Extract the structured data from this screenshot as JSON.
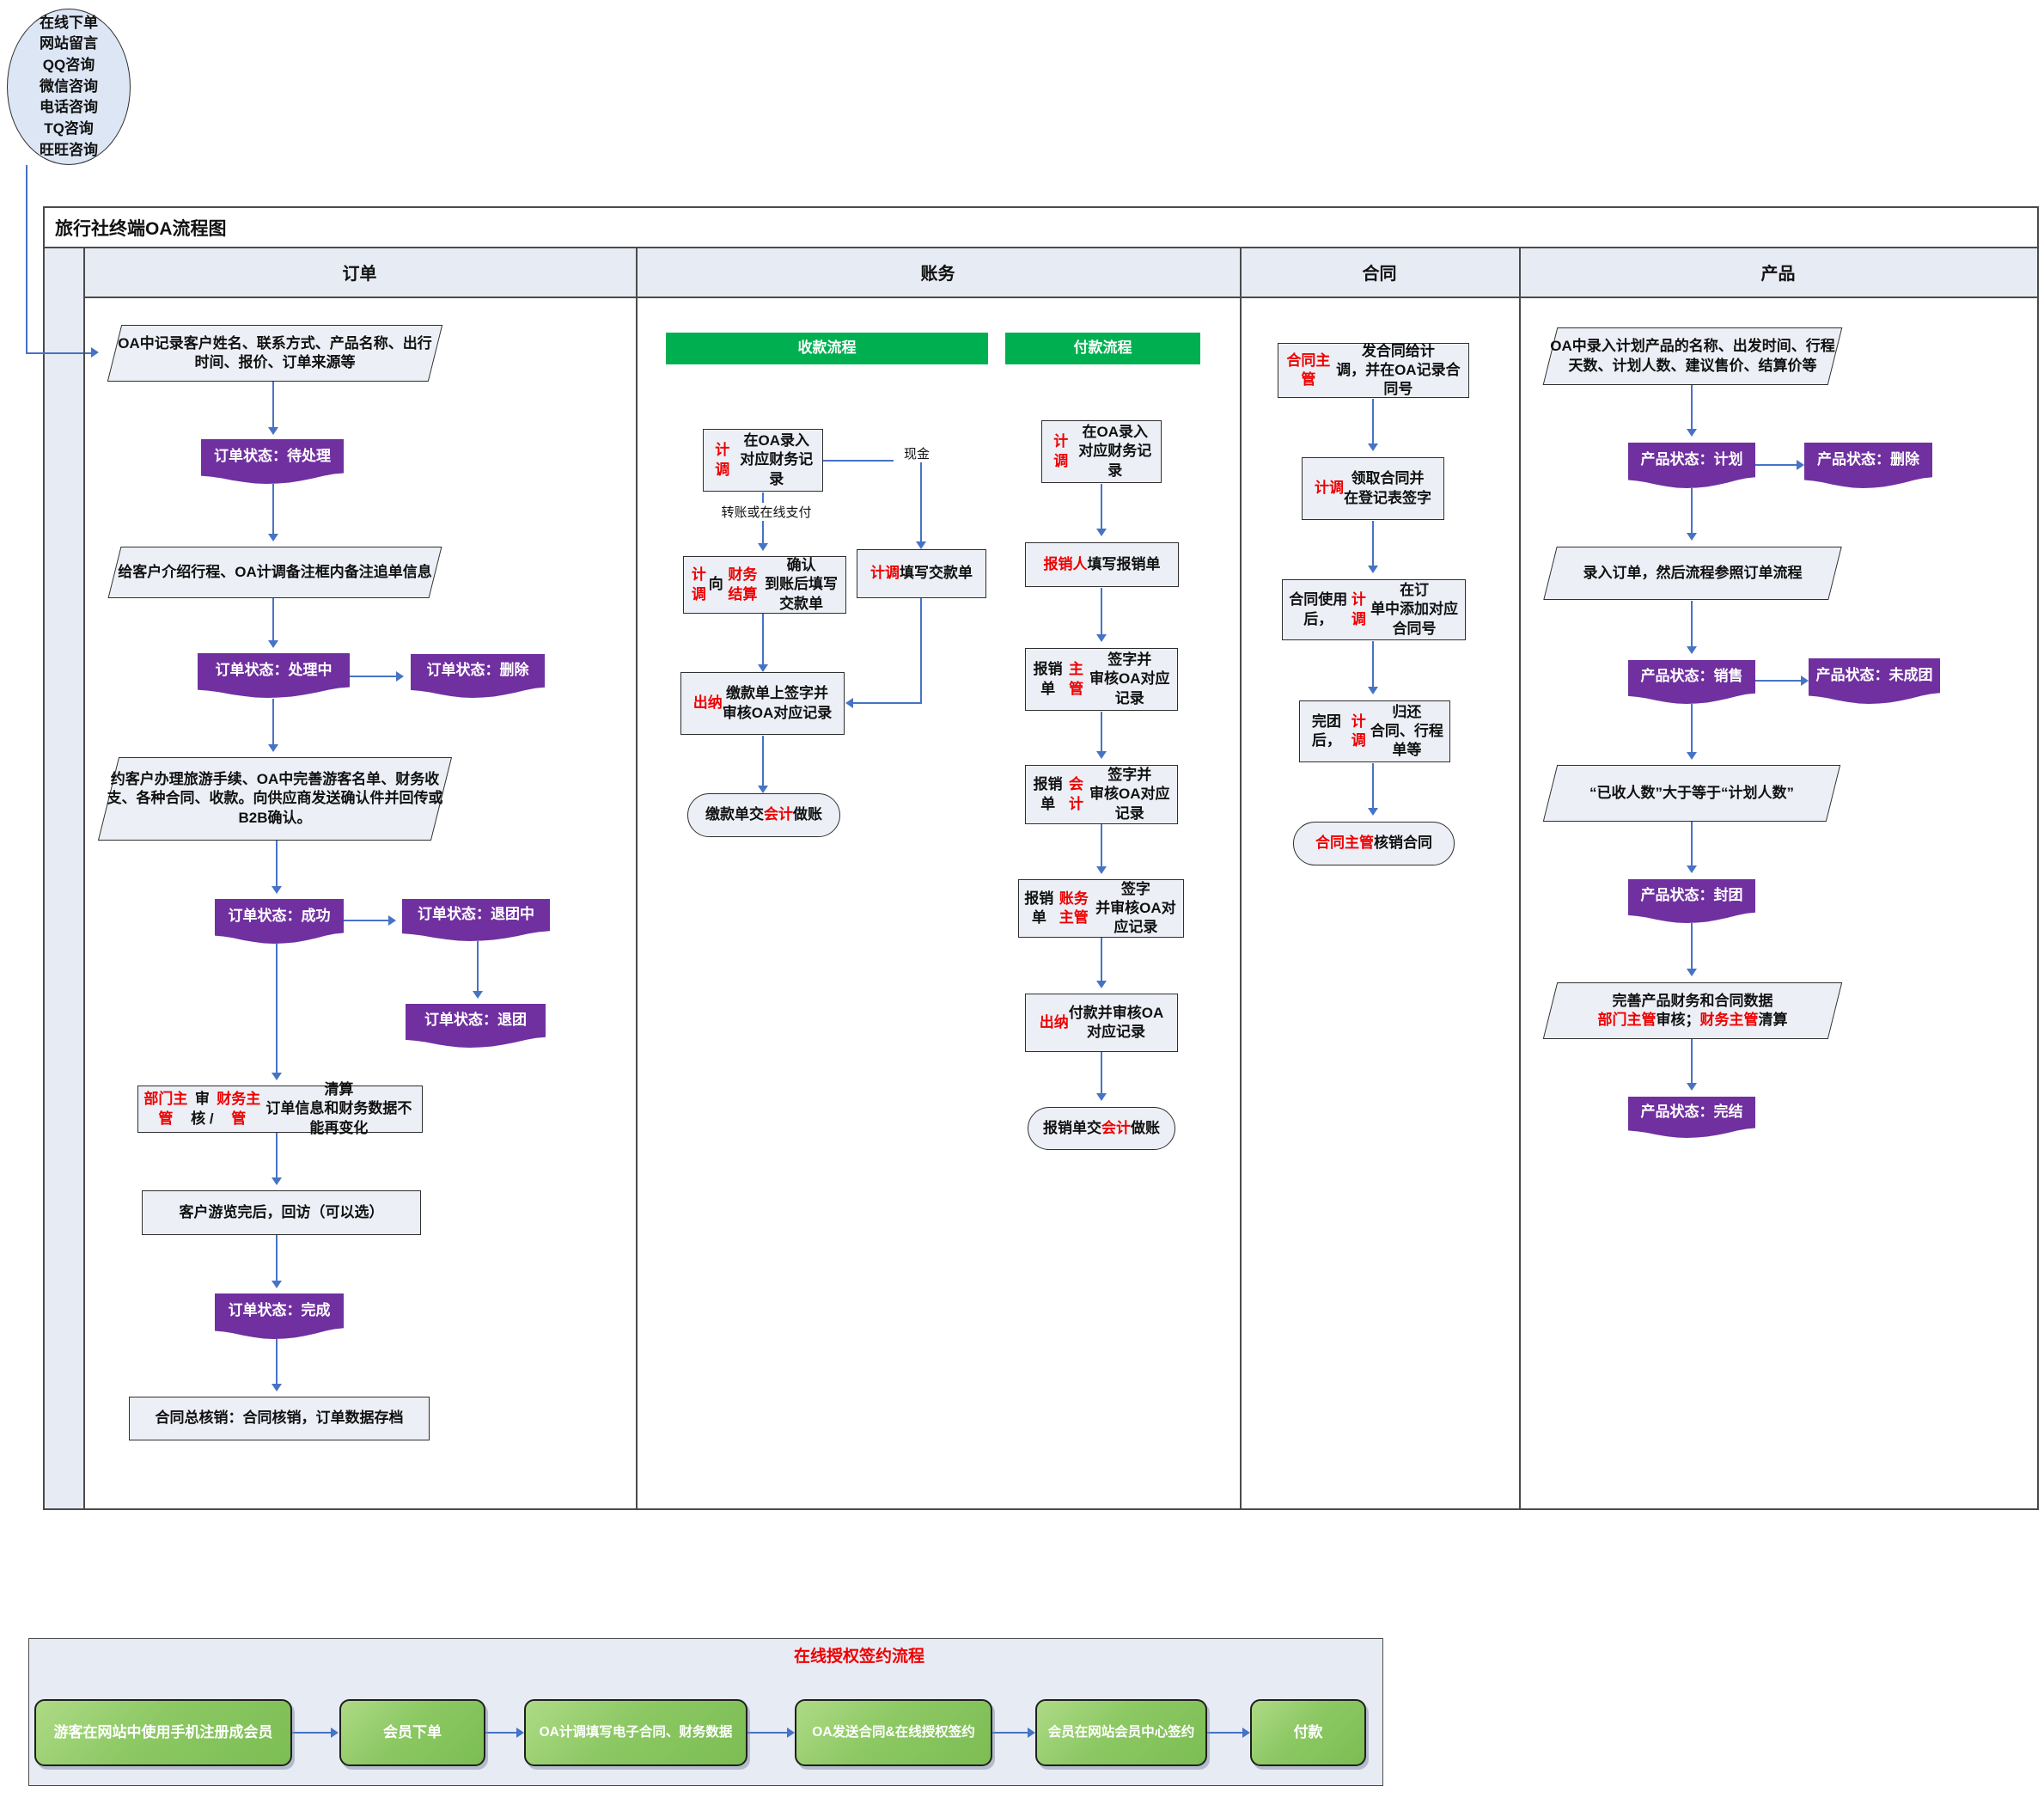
{
  "source": {
    "lines": "在线下单\n网站留言\nQQ咨询\n微信咨询\n电话咨询\nTQ咨询\n旺旺咨询"
  },
  "chart": {
    "title": "旅行社终端OA流程图",
    "columns": [
      "订单",
      "账务",
      "合同",
      "产品"
    ]
  },
  "orders": {
    "record_info": "OA中记录客户姓名、联系方式、产品名称、出行时间、报价、订单来源等",
    "status_pending": "订单状态：待处理",
    "intro": "给客户介绍行程、OA计调备注框内备注追单信息",
    "status_processing": "订单状态：处理中",
    "status_deleted": "订单状态：删除",
    "procedures": "约客户办理旅游手续、OA中完善游客名单、财务收支、各种合同、收款。向供应商发送确认件并回传或B2B确认。",
    "status_success": "订单状态：成功",
    "status_refunding": "订单状态：退团中",
    "status_refunded": "订单状态：退团",
    "review": [
      {
        "t": "部门主管",
        "r": 1
      },
      {
        "t": "审核 / "
      },
      {
        "t": "财务主管",
        "r": 1
      },
      {
        "t": "清算\n订单信息和财务数据不能再变化"
      }
    ],
    "visit": "客户游览完后，回访（可以选）",
    "status_done": "订单状态：完成",
    "writeoff": "合同总核销：合同核销，订单数据存档"
  },
  "finance": {
    "receipt_title": "收款流程",
    "payment_title": "付款流程",
    "cash_label": "现金",
    "transfer_label": "转账或在线支付",
    "r1": [
      {
        "t": "计调",
        "r": 1
      },
      {
        "t": "在OA录入\n对应财务记录"
      }
    ],
    "r2": [
      {
        "t": "计调",
        "r": 1
      },
      {
        "t": "向"
      },
      {
        "t": "财务结算",
        "r": 1
      },
      {
        "t": "确认\n到账后填写交款单"
      }
    ],
    "r3": [
      {
        "t": "计调",
        "r": 1
      },
      {
        "t": "填写交款单"
      }
    ],
    "r4": [
      {
        "t": "出纳",
        "r": 1
      },
      {
        "t": "缴款单上签字并\n审核OA对应记录"
      }
    ],
    "r5": [
      {
        "t": "缴款单交"
      },
      {
        "t": "会计",
        "r": 1
      },
      {
        "t": "做账"
      }
    ],
    "p1": [
      {
        "t": "计调",
        "r": 1
      },
      {
        "t": "在OA录入\n对应财务记录"
      }
    ],
    "p2": [
      {
        "t": "报销人",
        "r": 1
      },
      {
        "t": "填写报销单"
      }
    ],
    "p3": [
      {
        "t": "报销单"
      },
      {
        "t": "主管",
        "r": 1
      },
      {
        "t": "签字并\n审核OA对应记录"
      }
    ],
    "p4": [
      {
        "t": "报销单"
      },
      {
        "t": "会计",
        "r": 1
      },
      {
        "t": "签字并\n审核OA对应记录"
      }
    ],
    "p5": [
      {
        "t": "报销单"
      },
      {
        "t": "账务主管",
        "r": 1
      },
      {
        "t": "签字\n并审核OA对应记录"
      }
    ],
    "p6": [
      {
        "t": "出纳",
        "r": 1
      },
      {
        "t": "付款并审核OA\n对应记录"
      }
    ],
    "p7": [
      {
        "t": "报销单交"
      },
      {
        "t": "会计",
        "r": 1
      },
      {
        "t": "做账"
      }
    ]
  },
  "contract": {
    "c1": [
      {
        "t": "合同主管",
        "r": 1
      },
      {
        "t": "发合同给计\n调，并在OA记录合同号"
      }
    ],
    "c2": [
      {
        "t": "计调",
        "r": 1
      },
      {
        "t": "领取合同并\n在登记表签字"
      }
    ],
    "c3": [
      {
        "t": "合同使用后，"
      },
      {
        "t": "计调",
        "r": 1
      },
      {
        "t": "在订\n单中添加对应合同号"
      }
    ],
    "c4": [
      {
        "t": "完团后，"
      },
      {
        "t": "计调",
        "r": 1
      },
      {
        "t": "归还\n合同、行程单等"
      }
    ],
    "c5": [
      {
        "t": "合同主管",
        "r": 1
      },
      {
        "t": "核销合同"
      }
    ]
  },
  "product": {
    "entry": "OA中录入计划产品的名称、出发时间、行程天数、计划人数、建议售价、结算价等",
    "status_plan": "产品状态：计划",
    "status_delete": "产品状态：删除",
    "order_entry": "录入订单，然后流程参照订单流程",
    "status_sale": "产品状态：销售",
    "status_notformed": "产品状态：未成团",
    "condition": "“已收人数”大于等于“计划人数”",
    "status_closed": "产品状态：封团",
    "finalize": [
      {
        "t": "完善产品财务和合同数据\n"
      },
      {
        "t": "部门主管",
        "r": 1
      },
      {
        "t": "审核；"
      },
      {
        "t": "财务主管",
        "r": 1
      },
      {
        "t": "清算"
      }
    ],
    "status_finished": "产品状态：完结"
  },
  "online_sign": {
    "title": "在线授权签约流程",
    "steps": [
      "游客在网站中使用手机注册成会员",
      "会员下单",
      "OA计调填写电子合同、财务数据",
      "OA发送合同&在线授权签约",
      "会员在网站会员中心签约",
      "付款"
    ]
  },
  "colors": {
    "status_purple": "#7030A0",
    "banner_green": "#00B050",
    "step_green": "#8CC863",
    "arrow_blue": "#4673C5",
    "highlight_red": "#EE0000",
    "shape_fill": "#ECEFF6",
    "lane_fill": "#E7EBF4"
  }
}
